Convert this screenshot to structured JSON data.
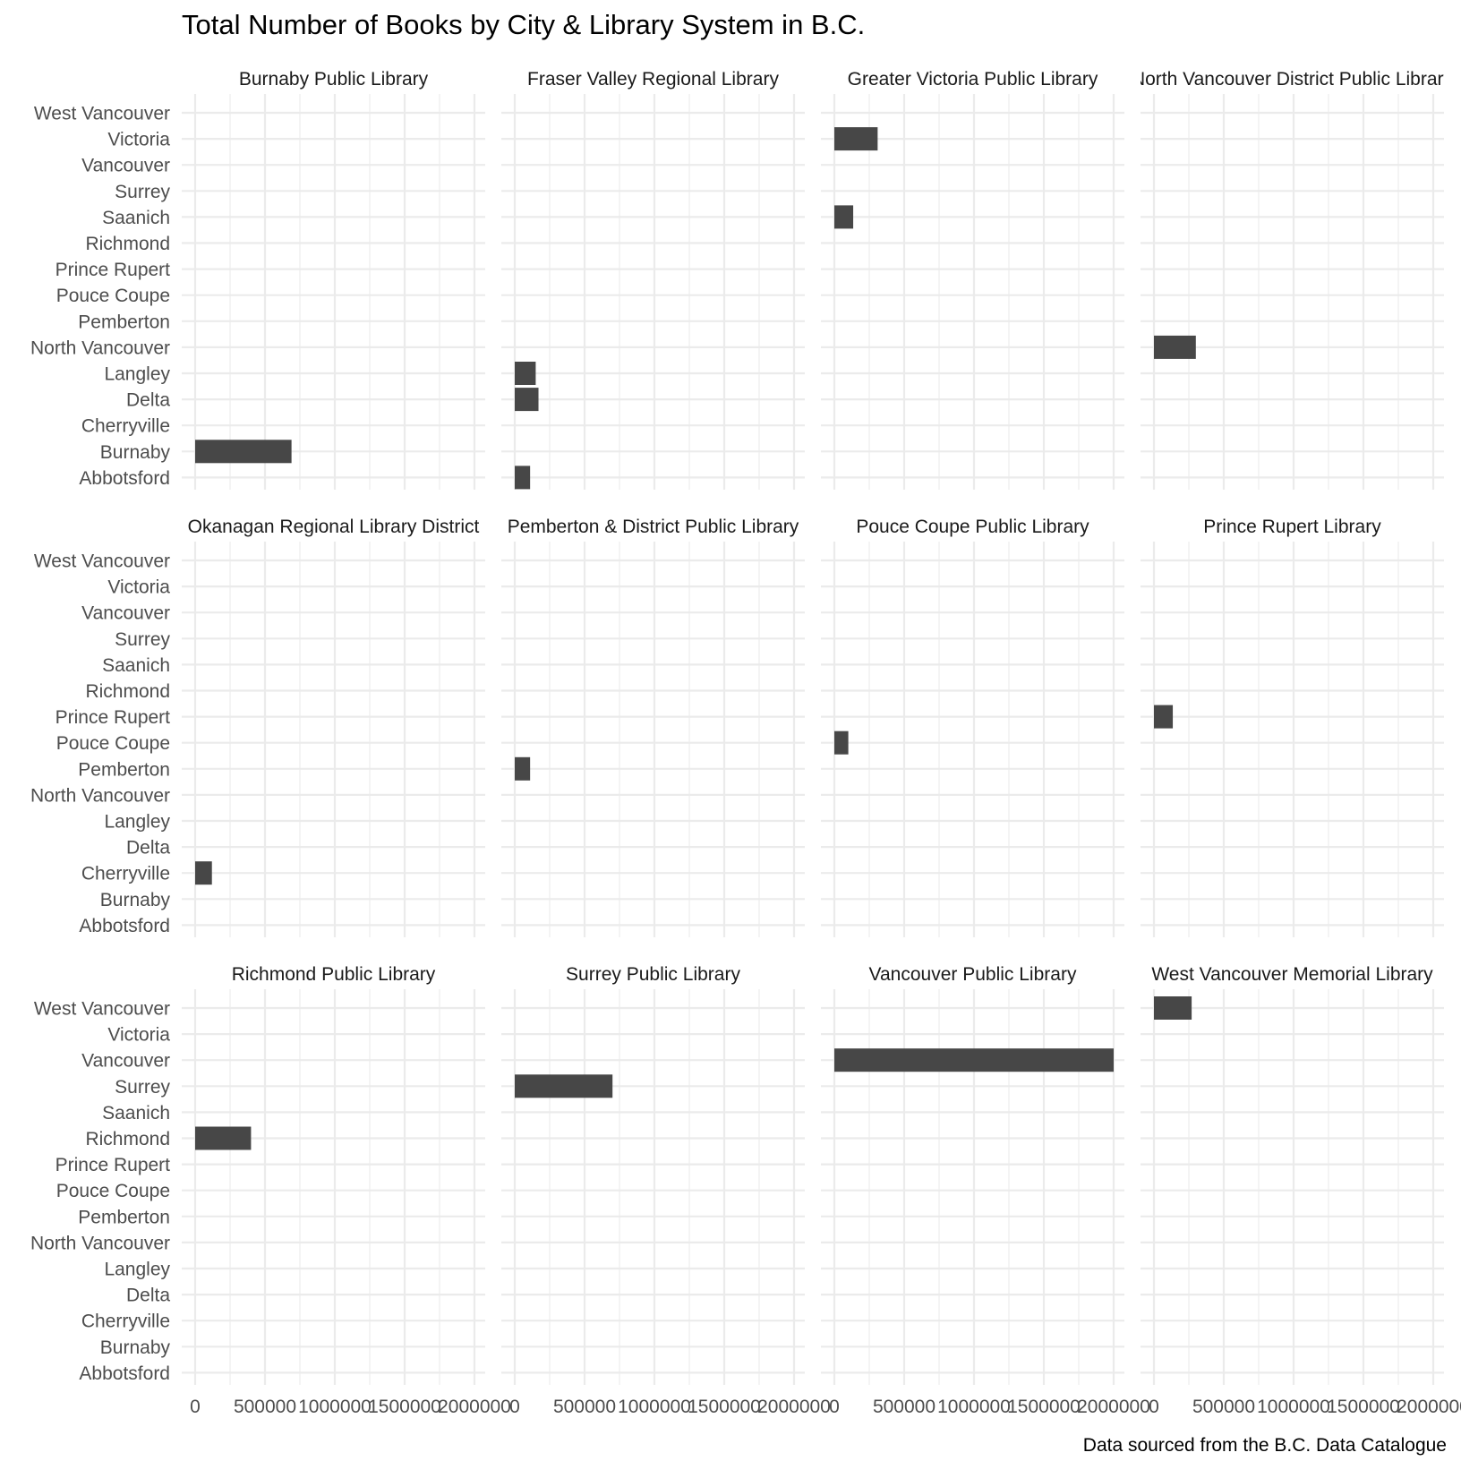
{
  "chart_data": {
    "type": "bar",
    "orientation": "horizontal",
    "title": "Total Number of Books by City & Library System in B.C.",
    "caption": "Data sourced from the B.C. Data Catalogue",
    "xlabel": "",
    "ylabel": "",
    "xlim": [
      0,
      2100000
    ],
    "x_ticks": [
      0,
      500000,
      1000000,
      1500000,
      2000000
    ],
    "x_tick_labels": [
      "0",
      "500000",
      "1000000",
      "1500000",
      "2000000"
    ],
    "grid": true,
    "bar_color": "#474747",
    "categories": [
      "West Vancouver",
      "Victoria",
      "Vancouver",
      "Surrey",
      "Saanich",
      "Richmond",
      "Prince Rupert",
      "Pouce Coupe",
      "Pemberton",
      "North Vancouver",
      "Langley",
      "Delta",
      "Cherryville",
      "Burnaby",
      "Abbotsford"
    ],
    "facets": [
      {
        "name": "Burnaby Public Library",
        "bars": [
          {
            "city": "Burnaby",
            "value": 690000
          }
        ]
      },
      {
        "name": "Fraser Valley Regional Library",
        "bars": [
          {
            "city": "Langley",
            "value": 150000
          },
          {
            "city": "Delta",
            "value": 170000
          },
          {
            "city": "Abbotsford",
            "value": 110000
          }
        ]
      },
      {
        "name": "Greater Victoria Public Library",
        "bars": [
          {
            "city": "Victoria",
            "value": 310000
          },
          {
            "city": "Saanich",
            "value": 135000
          }
        ]
      },
      {
        "name": "North Vancouver District Public Library",
        "bars": [
          {
            "city": "North Vancouver",
            "value": 300000
          }
        ]
      },
      {
        "name": "Okanagan Regional Library District",
        "bars": [
          {
            "city": "Cherryville",
            "value": 120000
          }
        ]
      },
      {
        "name": "Pemberton & District Public Library",
        "bars": [
          {
            "city": "Pemberton",
            "value": 110000
          }
        ]
      },
      {
        "name": "Pouce Coupe Public Library",
        "bars": [
          {
            "city": "Pouce Coupe",
            "value": 100000
          }
        ]
      },
      {
        "name": "Prince Rupert Library",
        "bars": [
          {
            "city": "Prince Rupert",
            "value": 135000
          }
        ]
      },
      {
        "name": "Richmond Public Library",
        "bars": [
          {
            "city": "Richmond",
            "value": 400000
          }
        ]
      },
      {
        "name": "Surrey Public Library",
        "bars": [
          {
            "city": "Surrey",
            "value": 700000
          }
        ]
      },
      {
        "name": "Vancouver Public Library",
        "bars": [
          {
            "city": "Vancouver",
            "value": 2000000
          }
        ]
      },
      {
        "name": "West Vancouver Memorial Library",
        "bars": [
          {
            "city": "West Vancouver",
            "value": 270000
          }
        ]
      }
    ]
  }
}
